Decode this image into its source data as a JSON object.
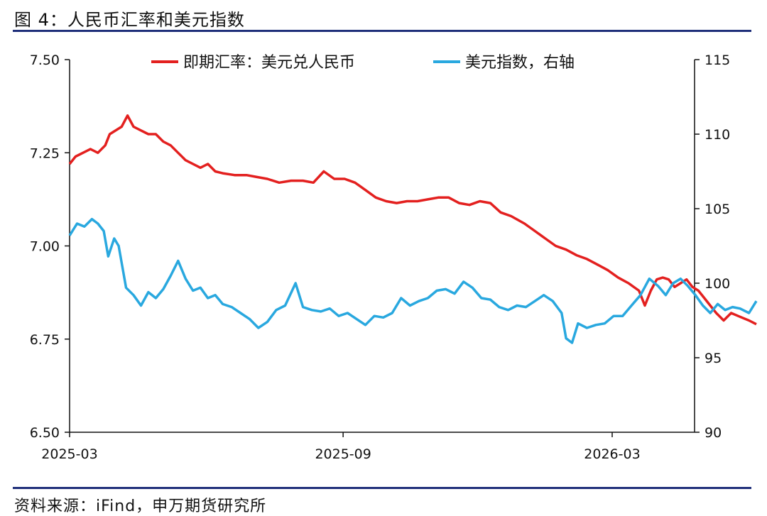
{
  "title": "图 4：人民币汇率和美元指数",
  "source": "资料来源：iFind，申万期货研究所",
  "chart_data": {
    "type": "line",
    "x_range": [
      "2025-03-01",
      "2026-05-15"
    ],
    "x_ticks": [
      {
        "label": "2025-03",
        "date": "2025-03-01"
      },
      {
        "label": "2025-09",
        "date": "2025-09-01"
      },
      {
        "label": "2026-03",
        "date": "2026-03-01"
      }
    ],
    "y_left": {
      "range": [
        6.5,
        7.5
      ],
      "ticks": [
        "6.50",
        "6.75",
        "7.00",
        "7.25",
        "7.50"
      ]
    },
    "y_right": {
      "range": [
        90,
        115
      ],
      "ticks": [
        "90",
        "95",
        "100",
        "105",
        "110",
        "115"
      ]
    },
    "legend_position": "top",
    "series": [
      {
        "name": "即期汇率：美元兑人民币",
        "axis": "left",
        "color": "#e3201f",
        "points": [
          [
            "2025-03-01",
            7.22
          ],
          [
            "2025-03-05",
            7.24
          ],
          [
            "2025-03-10",
            7.25
          ],
          [
            "2025-03-15",
            7.26
          ],
          [
            "2025-03-20",
            7.25
          ],
          [
            "2025-03-25",
            7.27
          ],
          [
            "2025-03-28",
            7.3
          ],
          [
            "2025-04-01",
            7.31
          ],
          [
            "2025-04-05",
            7.32
          ],
          [
            "2025-04-09",
            7.35
          ],
          [
            "2025-04-13",
            7.32
          ],
          [
            "2025-04-18",
            7.31
          ],
          [
            "2025-04-23",
            7.3
          ],
          [
            "2025-04-28",
            7.3
          ],
          [
            "2025-05-03",
            7.28
          ],
          [
            "2025-05-08",
            7.27
          ],
          [
            "2025-05-13",
            7.25
          ],
          [
            "2025-05-18",
            7.23
          ],
          [
            "2025-05-23",
            7.22
          ],
          [
            "2025-05-28",
            7.21
          ],
          [
            "2025-06-02",
            7.22
          ],
          [
            "2025-06-07",
            7.2
          ],
          [
            "2025-06-12",
            7.195
          ],
          [
            "2025-06-20",
            7.19
          ],
          [
            "2025-06-28",
            7.19
          ],
          [
            "2025-07-05",
            7.185
          ],
          [
            "2025-07-12",
            7.18
          ],
          [
            "2025-07-20",
            7.17
          ],
          [
            "2025-07-28",
            7.175
          ],
          [
            "2025-08-05",
            7.175
          ],
          [
            "2025-08-12",
            7.17
          ],
          [
            "2025-08-19",
            7.2
          ],
          [
            "2025-08-26",
            7.18
          ],
          [
            "2025-09-02",
            7.18
          ],
          [
            "2025-09-09",
            7.17
          ],
          [
            "2025-09-16",
            7.15
          ],
          [
            "2025-09-23",
            7.13
          ],
          [
            "2025-09-30",
            7.12
          ],
          [
            "2025-10-07",
            7.115
          ],
          [
            "2025-10-14",
            7.12
          ],
          [
            "2025-10-21",
            7.12
          ],
          [
            "2025-10-28",
            7.125
          ],
          [
            "2025-11-04",
            7.13
          ],
          [
            "2025-11-11",
            7.13
          ],
          [
            "2025-11-18",
            7.115
          ],
          [
            "2025-11-25",
            7.11
          ],
          [
            "2025-12-02",
            7.12
          ],
          [
            "2025-12-09",
            7.115
          ],
          [
            "2025-12-16",
            7.09
          ],
          [
            "2025-12-23",
            7.08
          ],
          [
            "2026-01-01",
            7.06
          ],
          [
            "2026-01-08",
            7.04
          ],
          [
            "2026-01-15",
            7.02
          ],
          [
            "2026-01-22",
            7.0
          ],
          [
            "2026-01-29",
            6.99
          ],
          [
            "2026-02-05",
            6.975
          ],
          [
            "2026-02-12",
            6.965
          ],
          [
            "2026-02-19",
            6.95
          ],
          [
            "2026-02-26",
            6.935
          ],
          [
            "2026-03-05",
            6.915
          ],
          [
            "2026-03-12",
            6.9
          ],
          [
            "2026-03-19",
            6.88
          ],
          [
            "2026-03-23",
            6.84
          ],
          [
            "2026-03-27",
            6.88
          ],
          [
            "2026-03-31",
            6.91
          ],
          [
            "2026-04-04",
            6.915
          ],
          [
            "2026-04-08",
            6.91
          ],
          [
            "2026-04-12",
            6.89
          ],
          [
            "2026-04-16",
            6.9
          ],
          [
            "2026-04-20",
            6.91
          ],
          [
            "2026-04-24",
            6.89
          ],
          [
            "2026-04-28",
            6.88
          ],
          [
            "2026-05-02",
            6.86
          ],
          [
            "2026-05-06",
            6.84
          ],
          [
            "2026-05-10",
            6.82
          ],
          [
            "2026-05-15",
            6.8
          ],
          [
            "2026-05-20",
            6.82
          ],
          [
            "2026-05-26",
            6.81
          ],
          [
            "2026-06-01",
            6.8
          ],
          [
            "2026-06-06",
            6.79
          ]
        ]
      },
      {
        "name": "美元指数，右轴",
        "axis": "right",
        "color": "#29a8df",
        "points": [
          [
            "2025-03-01",
            103.2
          ],
          [
            "2025-03-06",
            104.0
          ],
          [
            "2025-03-11",
            103.8
          ],
          [
            "2025-03-16",
            104.3
          ],
          [
            "2025-03-20",
            104.0
          ],
          [
            "2025-03-24",
            103.5
          ],
          [
            "2025-03-27",
            101.8
          ],
          [
            "2025-03-31",
            103.0
          ],
          [
            "2025-04-03",
            102.5
          ],
          [
            "2025-04-08",
            99.7
          ],
          [
            "2025-04-13",
            99.2
          ],
          [
            "2025-04-18",
            98.5
          ],
          [
            "2025-04-23",
            99.4
          ],
          [
            "2025-04-28",
            99.0
          ],
          [
            "2025-05-03",
            99.6
          ],
          [
            "2025-05-08",
            100.5
          ],
          [
            "2025-05-13",
            101.5
          ],
          [
            "2025-05-18",
            100.3
          ],
          [
            "2025-05-23",
            99.5
          ],
          [
            "2025-05-28",
            99.7
          ],
          [
            "2025-06-02",
            99.0
          ],
          [
            "2025-06-07",
            99.2
          ],
          [
            "2025-06-12",
            98.6
          ],
          [
            "2025-06-18",
            98.4
          ],
          [
            "2025-06-24",
            98.0
          ],
          [
            "2025-06-30",
            97.6
          ],
          [
            "2025-07-06",
            97.0
          ],
          [
            "2025-07-12",
            97.4
          ],
          [
            "2025-07-18",
            98.2
          ],
          [
            "2025-07-24",
            98.5
          ],
          [
            "2025-07-31",
            100.0
          ],
          [
            "2025-08-05",
            98.4
          ],
          [
            "2025-08-11",
            98.2
          ],
          [
            "2025-08-17",
            98.1
          ],
          [
            "2025-08-23",
            98.3
          ],
          [
            "2025-08-29",
            97.8
          ],
          [
            "2025-09-04",
            98.0
          ],
          [
            "2025-09-10",
            97.6
          ],
          [
            "2025-09-16",
            97.2
          ],
          [
            "2025-09-22",
            97.8
          ],
          [
            "2025-09-28",
            97.7
          ],
          [
            "2025-10-04",
            98.0
          ],
          [
            "2025-10-10",
            99.0
          ],
          [
            "2025-10-16",
            98.5
          ],
          [
            "2025-10-22",
            98.8
          ],
          [
            "2025-10-28",
            99.0
          ],
          [
            "2025-11-03",
            99.5
          ],
          [
            "2025-11-09",
            99.6
          ],
          [
            "2025-11-15",
            99.3
          ],
          [
            "2025-11-21",
            100.1
          ],
          [
            "2025-11-27",
            99.7
          ],
          [
            "2025-12-03",
            99.0
          ],
          [
            "2025-12-09",
            98.9
          ],
          [
            "2025-12-15",
            98.4
          ],
          [
            "2025-12-21",
            98.2
          ],
          [
            "2025-12-27",
            98.5
          ],
          [
            "2026-01-02",
            98.4
          ],
          [
            "2026-01-08",
            98.8
          ],
          [
            "2026-01-14",
            99.2
          ],
          [
            "2026-01-20",
            98.8
          ],
          [
            "2026-01-26",
            98.0
          ],
          [
            "2026-01-29",
            96.3
          ],
          [
            "2026-02-02",
            96.0
          ],
          [
            "2026-02-06",
            97.3
          ],
          [
            "2026-02-12",
            97.0
          ],
          [
            "2026-02-18",
            97.2
          ],
          [
            "2026-02-24",
            97.3
          ],
          [
            "2026-03-02",
            97.8
          ],
          [
            "2026-03-08",
            97.8
          ],
          [
            "2026-03-14",
            98.5
          ],
          [
            "2026-03-20",
            99.2
          ],
          [
            "2026-03-26",
            100.3
          ],
          [
            "2026-04-01",
            99.8
          ],
          [
            "2026-04-06",
            99.2
          ],
          [
            "2026-04-11",
            100.0
          ],
          [
            "2026-04-16",
            100.3
          ],
          [
            "2026-04-21",
            99.8
          ],
          [
            "2026-04-26",
            99.2
          ],
          [
            "2026-05-01",
            98.5
          ],
          [
            "2026-05-06",
            98.0
          ],
          [
            "2026-05-11",
            98.6
          ],
          [
            "2026-05-16",
            98.2
          ],
          [
            "2026-05-21",
            98.4
          ],
          [
            "2026-05-26",
            98.3
          ],
          [
            "2026-06-01",
            98.0
          ],
          [
            "2026-06-06",
            98.8
          ]
        ]
      }
    ]
  }
}
